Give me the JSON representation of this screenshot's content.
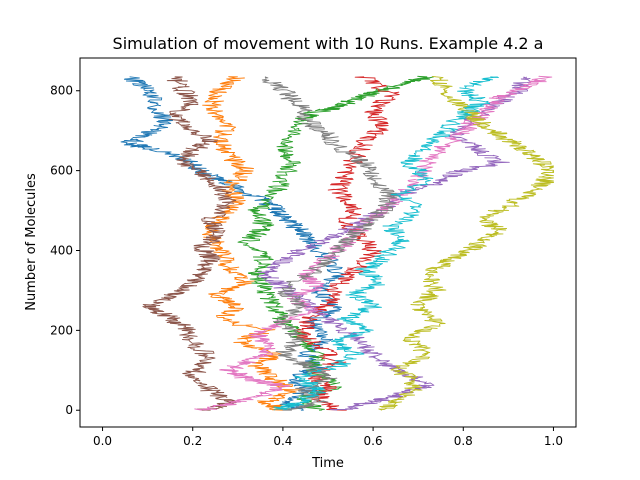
{
  "chart_data": {
    "type": "line",
    "title": "Simulation of movement with 10 Runs. Example 4.2 a",
    "xlabel": "Time",
    "ylabel": "Number of Molecules",
    "xlim": [
      -0.05,
      1.05
    ],
    "ylim": [
      -42,
      882
    ],
    "xticks": [
      0.0,
      0.2,
      0.4,
      0.6,
      0.8,
      1.0
    ],
    "xtick_labels": [
      "0.0",
      "0.2",
      "0.4",
      "0.6",
      "0.8",
      "1.0"
    ],
    "yticks": [
      0,
      200,
      400,
      600,
      800
    ],
    "ytick_labels": [
      "0",
      "200",
      "400",
      "600",
      "800"
    ],
    "grid": false,
    "legend": "none",
    "series": [
      {
        "color": "#1f77b4",
        "points": [
          [
            0.44,
            0
          ],
          [
            0.4,
            20
          ],
          [
            0.46,
            50
          ],
          [
            0.42,
            80
          ],
          [
            0.48,
            110
          ],
          [
            0.45,
            140
          ],
          [
            0.5,
            180
          ],
          [
            0.46,
            220
          ],
          [
            0.52,
            260
          ],
          [
            0.48,
            300
          ],
          [
            0.52,
            340
          ],
          [
            0.5,
            380
          ],
          [
            0.46,
            420
          ],
          [
            0.44,
            450
          ],
          [
            0.4,
            480
          ],
          [
            0.38,
            510
          ],
          [
            0.33,
            540
          ],
          [
            0.28,
            570
          ],
          [
            0.22,
            600
          ],
          [
            0.18,
            630
          ],
          [
            0.1,
            660
          ],
          [
            0.05,
            665
          ],
          [
            0.1,
            690
          ],
          [
            0.14,
            720
          ],
          [
            0.12,
            760
          ],
          [
            0.1,
            800
          ],
          [
            0.06,
            835
          ]
        ]
      },
      {
        "color": "#ff7f0e",
        "points": [
          [
            0.4,
            0
          ],
          [
            0.36,
            20
          ],
          [
            0.42,
            50
          ],
          [
            0.38,
            80
          ],
          [
            0.34,
            110
          ],
          [
            0.38,
            140
          ],
          [
            0.3,
            170
          ],
          [
            0.36,
            200
          ],
          [
            0.26,
            230
          ],
          [
            0.3,
            260
          ],
          [
            0.25,
            290
          ],
          [
            0.32,
            320
          ],
          [
            0.28,
            360
          ],
          [
            0.26,
            400
          ],
          [
            0.24,
            440
          ],
          [
            0.26,
            480
          ],
          [
            0.3,
            520
          ],
          [
            0.28,
            560
          ],
          [
            0.32,
            600
          ],
          [
            0.28,
            640
          ],
          [
            0.26,
            680
          ],
          [
            0.28,
            720
          ],
          [
            0.24,
            760
          ],
          [
            0.26,
            800
          ],
          [
            0.3,
            835
          ]
        ]
      },
      {
        "color": "#2ca02c",
        "points": [
          [
            0.48,
            0
          ],
          [
            0.44,
            30
          ],
          [
            0.52,
            60
          ],
          [
            0.46,
            100
          ],
          [
            0.48,
            140
          ],
          [
            0.44,
            180
          ],
          [
            0.4,
            220
          ],
          [
            0.38,
            260
          ],
          [
            0.36,
            300
          ],
          [
            0.34,
            340
          ],
          [
            0.36,
            380
          ],
          [
            0.32,
            420
          ],
          [
            0.36,
            460
          ],
          [
            0.34,
            500
          ],
          [
            0.38,
            540
          ],
          [
            0.4,
            580
          ],
          [
            0.42,
            620
          ],
          [
            0.4,
            660
          ],
          [
            0.42,
            700
          ],
          [
            0.46,
            740
          ],
          [
            0.52,
            760
          ],
          [
            0.56,
            780
          ],
          [
            0.62,
            800
          ],
          [
            0.68,
            820
          ],
          [
            0.72,
            835
          ]
        ]
      },
      {
        "color": "#d62728",
        "points": [
          [
            0.52,
            0
          ],
          [
            0.48,
            30
          ],
          [
            0.5,
            60
          ],
          [
            0.46,
            90
          ],
          [
            0.52,
            120
          ],
          [
            0.48,
            160
          ],
          [
            0.44,
            190
          ],
          [
            0.46,
            230
          ],
          [
            0.5,
            270
          ],
          [
            0.52,
            310
          ],
          [
            0.56,
            350
          ],
          [
            0.6,
            390
          ],
          [
            0.58,
            430
          ],
          [
            0.54,
            470
          ],
          [
            0.56,
            510
          ],
          [
            0.52,
            550
          ],
          [
            0.54,
            590
          ],
          [
            0.56,
            630
          ],
          [
            0.58,
            670
          ],
          [
            0.62,
            710
          ],
          [
            0.6,
            750
          ],
          [
            0.64,
            790
          ],
          [
            0.58,
            835
          ]
        ]
      },
      {
        "color": "#9467bd",
        "points": [
          [
            0.52,
            0
          ],
          [
            0.6,
            20
          ],
          [
            0.66,
            40
          ],
          [
            0.72,
            60
          ],
          [
            0.68,
            90
          ],
          [
            0.62,
            120
          ],
          [
            0.58,
            160
          ],
          [
            0.54,
            200
          ],
          [
            0.48,
            240
          ],
          [
            0.44,
            280
          ],
          [
            0.4,
            310
          ],
          [
            0.36,
            340
          ],
          [
            0.4,
            370
          ],
          [
            0.44,
            400
          ],
          [
            0.5,
            430
          ],
          [
            0.56,
            460
          ],
          [
            0.62,
            500
          ],
          [
            0.66,
            540
          ],
          [
            0.74,
            570
          ],
          [
            0.8,
            600
          ],
          [
            0.88,
            620
          ],
          [
            0.84,
            650
          ],
          [
            0.78,
            690
          ],
          [
            0.82,
            730
          ],
          [
            0.88,
            770
          ],
          [
            0.92,
            800
          ],
          [
            0.94,
            835
          ]
        ]
      },
      {
        "color": "#8c564b",
        "points": [
          [
            0.22,
            0
          ],
          [
            0.28,
            20
          ],
          [
            0.24,
            50
          ],
          [
            0.2,
            90
          ],
          [
            0.24,
            130
          ],
          [
            0.2,
            170
          ],
          [
            0.18,
            210
          ],
          [
            0.14,
            240
          ],
          [
            0.1,
            260
          ],
          [
            0.16,
            290
          ],
          [
            0.2,
            320
          ],
          [
            0.22,
            350
          ],
          [
            0.24,
            380
          ],
          [
            0.22,
            410
          ],
          [
            0.26,
            440
          ],
          [
            0.24,
            480
          ],
          [
            0.28,
            520
          ],
          [
            0.26,
            560
          ],
          [
            0.22,
            590
          ],
          [
            0.18,
            620
          ],
          [
            0.2,
            650
          ],
          [
            0.24,
            680
          ],
          [
            0.18,
            710
          ],
          [
            0.16,
            740
          ],
          [
            0.2,
            770
          ],
          [
            0.18,
            800
          ],
          [
            0.16,
            835
          ]
        ]
      },
      {
        "color": "#e377c2",
        "points": [
          [
            0.22,
            0
          ],
          [
            0.3,
            20
          ],
          [
            0.36,
            40
          ],
          [
            0.4,
            60
          ],
          [
            0.32,
            80
          ],
          [
            0.28,
            100
          ],
          [
            0.34,
            130
          ],
          [
            0.38,
            160
          ],
          [
            0.34,
            190
          ],
          [
            0.4,
            220
          ],
          [
            0.46,
            250
          ],
          [
            0.42,
            280
          ],
          [
            0.48,
            310
          ],
          [
            0.44,
            340
          ],
          [
            0.5,
            380
          ],
          [
            0.54,
            420
          ],
          [
            0.58,
            460
          ],
          [
            0.62,
            500
          ],
          [
            0.66,
            540
          ],
          [
            0.7,
            580
          ],
          [
            0.72,
            620
          ],
          [
            0.76,
            660
          ],
          [
            0.8,
            700
          ],
          [
            0.84,
            740
          ],
          [
            0.88,
            780
          ],
          [
            0.94,
            810
          ],
          [
            0.98,
            835
          ]
        ]
      },
      {
        "color": "#7f7f7f",
        "points": [
          [
            0.42,
            0
          ],
          [
            0.48,
            20
          ],
          [
            0.44,
            50
          ],
          [
            0.5,
            80
          ],
          [
            0.46,
            110
          ],
          [
            0.4,
            140
          ],
          [
            0.44,
            180
          ],
          [
            0.4,
            220
          ],
          [
            0.44,
            260
          ],
          [
            0.4,
            300
          ],
          [
            0.46,
            340
          ],
          [
            0.5,
            380
          ],
          [
            0.54,
            420
          ],
          [
            0.58,
            460
          ],
          [
            0.62,
            500
          ],
          [
            0.64,
            540
          ],
          [
            0.6,
            580
          ],
          [
            0.58,
            620
          ],
          [
            0.52,
            660
          ],
          [
            0.5,
            690
          ],
          [
            0.46,
            720
          ],
          [
            0.44,
            760
          ],
          [
            0.4,
            800
          ],
          [
            0.36,
            835
          ]
        ]
      },
      {
        "color": "#bcbd22",
        "points": [
          [
            0.62,
            0
          ],
          [
            0.66,
            30
          ],
          [
            0.7,
            60
          ],
          [
            0.66,
            100
          ],
          [
            0.72,
            140
          ],
          [
            0.68,
            180
          ],
          [
            0.74,
            220
          ],
          [
            0.7,
            260
          ],
          [
            0.74,
            300
          ],
          [
            0.72,
            340
          ],
          [
            0.76,
            370
          ],
          [
            0.8,
            390
          ],
          [
            0.84,
            420
          ],
          [
            0.88,
            450
          ],
          [
            0.84,
            480
          ],
          [
            0.9,
            510
          ],
          [
            0.94,
            540
          ],
          [
            0.98,
            570
          ],
          [
            1.0,
            600
          ],
          [
            0.96,
            630
          ],
          [
            0.92,
            660
          ],
          [
            0.88,
            690
          ],
          [
            0.84,
            720
          ],
          [
            0.8,
            760
          ],
          [
            0.76,
            800
          ],
          [
            0.74,
            835
          ]
        ]
      },
      {
        "color": "#17becf",
        "points": [
          [
            0.38,
            0
          ],
          [
            0.44,
            20
          ],
          [
            0.48,
            50
          ],
          [
            0.44,
            80
          ],
          [
            0.52,
            110
          ],
          [
            0.56,
            140
          ],
          [
            0.52,
            170
          ],
          [
            0.58,
            200
          ],
          [
            0.54,
            230
          ],
          [
            0.6,
            260
          ],
          [
            0.56,
            290
          ],
          [
            0.62,
            320
          ],
          [
            0.58,
            350
          ],
          [
            0.62,
            380
          ],
          [
            0.66,
            420
          ],
          [
            0.64,
            460
          ],
          [
            0.7,
            500
          ],
          [
            0.66,
            540
          ],
          [
            0.72,
            580
          ],
          [
            0.68,
            620
          ],
          [
            0.72,
            660
          ],
          [
            0.76,
            700
          ],
          [
            0.8,
            740
          ],
          [
            0.84,
            770
          ],
          [
            0.8,
            800
          ],
          [
            0.86,
            835
          ]
        ]
      }
    ]
  }
}
